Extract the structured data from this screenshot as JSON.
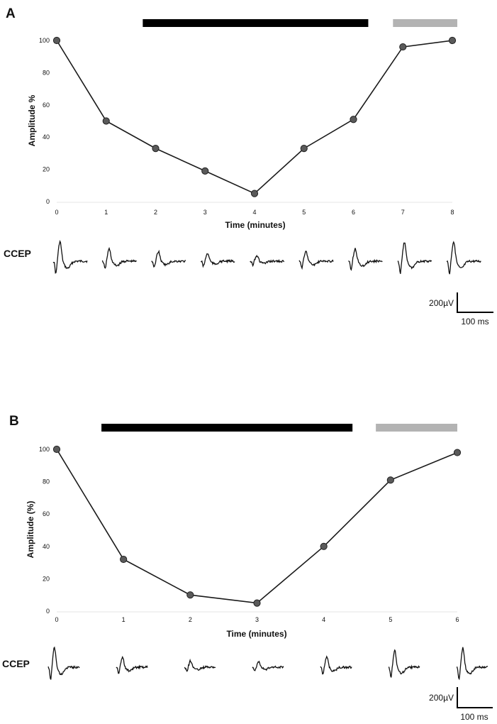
{
  "chart_data": [
    {
      "panel": "A",
      "type": "line",
      "xlabel": "Time (minutes)",
      "ylabel": "Amplitude %",
      "x": [
        0,
        1,
        2,
        3,
        4,
        5,
        6,
        7,
        8
      ],
      "y": [
        100,
        50,
        33,
        19,
        5,
        33,
        51,
        96,
        100
      ],
      "xticks": [
        "0",
        "1",
        "2",
        "3",
        "4",
        "5",
        "6",
        "7",
        "8"
      ],
      "yticks": [
        "0",
        "20",
        "40",
        "60",
        "80",
        "100"
      ],
      "xlim": [
        0,
        8
      ],
      "ylim": [
        0,
        100
      ],
      "grid": false,
      "bars": [
        {
          "color": "#000000",
          "x_start": 1.74,
          "x_end": 6.3
        },
        {
          "color": "#b3b3b3",
          "x_start": 6.8,
          "x_end": 8.1
        }
      ],
      "ccep_label": "CCEP",
      "scale_bar": {
        "voltage": "200µV",
        "time": "100 ms"
      }
    },
    {
      "panel": "B",
      "type": "line",
      "xlabel": "Time (minutes)",
      "ylabel": "Amplitude (%)",
      "x": [
        0,
        1,
        2,
        3,
        4,
        5,
        6
      ],
      "y": [
        100,
        32,
        10,
        5,
        40,
        81,
        98
      ],
      "xticks": [
        "0",
        "1",
        "2",
        "3",
        "4",
        "5",
        "6"
      ],
      "yticks": [
        "0",
        "20",
        "40",
        "60",
        "80",
        "100"
      ],
      "xlim": [
        0,
        6
      ],
      "ylim": [
        0,
        100
      ],
      "grid": false,
      "bars": [
        {
          "color": "#000000",
          "x_start": 0.67,
          "x_end": 4.43
        },
        {
          "color": "#b3b3b3",
          "x_start": 4.78,
          "x_end": 6.0
        }
      ],
      "ccep_label": "CCEP",
      "scale_bar": {
        "voltage": "200µV",
        "time": "100 ms"
      }
    }
  ]
}
